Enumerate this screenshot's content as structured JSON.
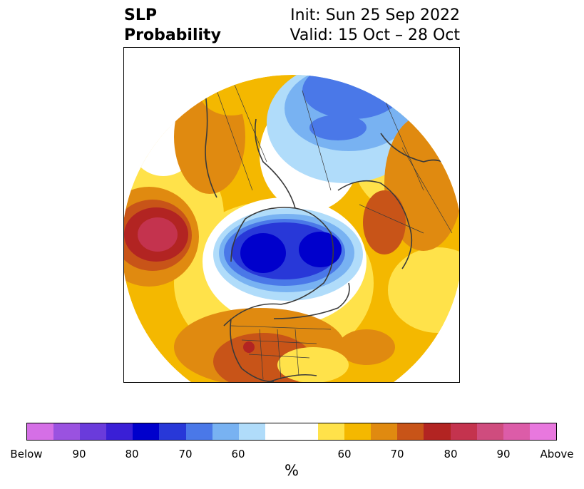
{
  "title": {
    "left_line1": "SLP",
    "left_line2": "Probability",
    "right_line1": "Init: Sun 25 Sep 2022",
    "right_line2": "Valid: 15 Oct – 28 Oct"
  },
  "colorbar": {
    "label": "%",
    "ticks": [
      "Below",
      "90",
      "80",
      "70",
      "60",
      "60",
      "70",
      "80",
      "90",
      "Above"
    ],
    "colors": [
      "#d56fe6",
      "#9a52e0",
      "#6a3bdb",
      "#3a1fd6",
      "#0000cc",
      "#2838d8",
      "#4a78e8",
      "#78b2f2",
      "#b0dcfa",
      "#ffffff",
      "#ffffff",
      "#ffe24a",
      "#f4b800",
      "#e08a10",
      "#c85418",
      "#b22422",
      "#c4334e",
      "#cf4c7e",
      "#dc5ca8",
      "#e878de"
    ]
  },
  "map": {
    "projection": "north-polar-stereographic",
    "field": "SLP probability",
    "colors": {
      "below_strong": "#0000cc",
      "below_mid": "#2838d8",
      "below_weak": "#4a78e8",
      "below_light": "#78b2f2",
      "below_faint": "#b0dcfa",
      "above_faint": "#ffe24a",
      "above_light": "#f4b800",
      "above_mid": "#e08a10",
      "above_strong": "#c85418",
      "above_dark": "#b22422",
      "above_max": "#c4334e",
      "coastline": "#3a3a3a"
    }
  }
}
